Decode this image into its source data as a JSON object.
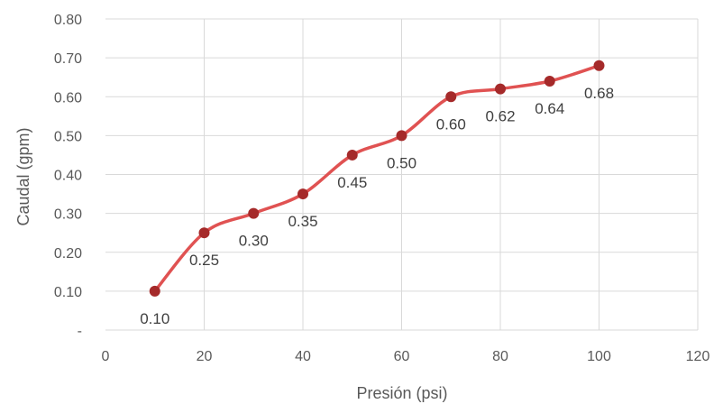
{
  "chart_data": {
    "type": "line",
    "smooth": true,
    "x": [
      10,
      20,
      30,
      40,
      50,
      60,
      70,
      80,
      90,
      100
    ],
    "series": [
      {
        "values": [
          0.1,
          0.25,
          0.3,
          0.35,
          0.45,
          0.5,
          0.6,
          0.62,
          0.64,
          0.68
        ],
        "labels": [
          "0.10",
          "0.25",
          "0.30",
          "0.35",
          "0.45",
          "0.50",
          "0.60",
          "0.62",
          "0.64",
          "0.68"
        ],
        "line_color": "#e05252",
        "marker_color": "#a52a2a"
      }
    ],
    "xlabel": "Presión (psi)",
    "ylabel": "Caudal (gpm)",
    "xlim": [
      0,
      120
    ],
    "ylim": [
      0,
      0.8
    ],
    "x_ticks": [
      0,
      20,
      40,
      60,
      80,
      100,
      120
    ],
    "x_tick_labels": [
      "0",
      "20",
      "40",
      "60",
      "80",
      "100",
      "120"
    ],
    "y_ticks": [
      0,
      0.1,
      0.2,
      0.3,
      0.4,
      0.5,
      0.6,
      0.7,
      0.8
    ],
    "y_tick_labels": [
      "-",
      "0.10",
      "0.20",
      "0.30",
      "0.40",
      "0.50",
      "0.60",
      "0.70",
      "0.80"
    ],
    "grid": true,
    "legend": "none"
  }
}
